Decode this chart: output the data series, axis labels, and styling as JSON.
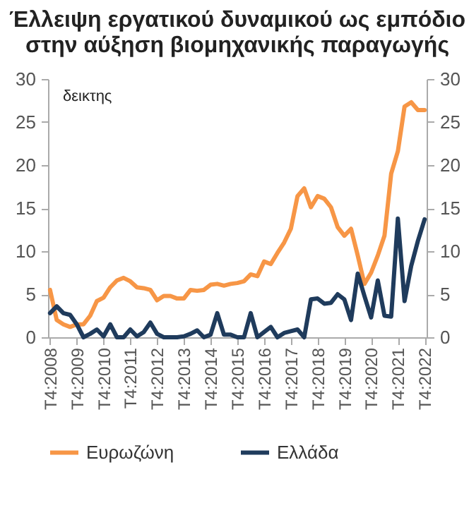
{
  "chart_data": {
    "type": "line",
    "title": "Έλλειψη εργατικού δυναμικού ως εμπόδιο στην αύξηση βιομηχανικής παραγωγής",
    "ylabel": "δεικτης",
    "categories": [
      "T4:2008",
      null,
      null,
      null,
      "T4:2009",
      null,
      null,
      null,
      "T4:2010",
      null,
      null,
      null,
      "T4:2011",
      null,
      null,
      null,
      "T4:2012",
      null,
      null,
      null,
      "T4:2013",
      null,
      null,
      null,
      "T4:2014",
      null,
      null,
      null,
      "T4:2015",
      null,
      null,
      null,
      "T4:2016",
      null,
      null,
      null,
      "T4:2017",
      null,
      null,
      null,
      "T4:2018",
      null,
      null,
      null,
      "T4:2019",
      null,
      null,
      null,
      "T4:2020",
      null,
      null,
      null,
      "T4:2021",
      null,
      null,
      null,
      "T4:2022"
    ],
    "series": [
      {
        "name": "Ευρωζώνη",
        "color": "#f79646",
        "values": [
          5.5,
          2.0,
          1.5,
          1.2,
          1.5,
          1.5,
          2.5,
          4.2,
          4.6,
          5.8,
          6.6,
          6.9,
          6.5,
          5.8,
          5.7,
          5.5,
          4.3,
          4.8,
          4.8,
          4.5,
          4.5,
          5.5,
          5.4,
          5.5,
          6.1,
          6.2,
          6.0,
          6.2,
          6.3,
          6.5,
          7.3,
          7.1,
          8.8,
          8.5,
          9.8,
          11.0,
          12.6,
          16.4,
          17.3,
          15.1,
          16.4,
          16.1,
          15.1,
          12.8,
          11.8,
          12.6,
          9.5,
          6.2,
          7.5,
          9.5,
          11.8,
          19.0,
          21.6,
          26.8,
          27.3,
          26.4,
          26.4
        ]
      },
      {
        "name": "Ελλάδα",
        "color": "#1f3b5c",
        "axis": "y2",
        "values": [
          2.8,
          3.6,
          2.8,
          2.6,
          1.5,
          0,
          0.4,
          0.9,
          0.1,
          1.5,
          0,
          0,
          0.9,
          0.1,
          0.6,
          1.7,
          0.4,
          0,
          0,
          0,
          0.1,
          0.4,
          0.8,
          0,
          0.3,
          2.8,
          0.3,
          0.3,
          0,
          0,
          2.8,
          0,
          0.6,
          1.2,
          0,
          0.5,
          0.7,
          0.9,
          0,
          4.4,
          4.5,
          3.9,
          4.0,
          5.0,
          4.4,
          2.0,
          7.4,
          4.8,
          2.3,
          6.6,
          2.5,
          2.4,
          13.8,
          4.2,
          8.3,
          11.2,
          13.7
        ]
      }
    ],
    "ylim": [
      0,
      30
    ],
    "yticks": [
      0,
      5,
      10,
      15,
      20,
      25,
      30
    ],
    "y2lim": [
      0,
      30
    ],
    "y2ticks": [
      0,
      5,
      10,
      15,
      20,
      25,
      30
    ],
    "legend": "bottom"
  }
}
